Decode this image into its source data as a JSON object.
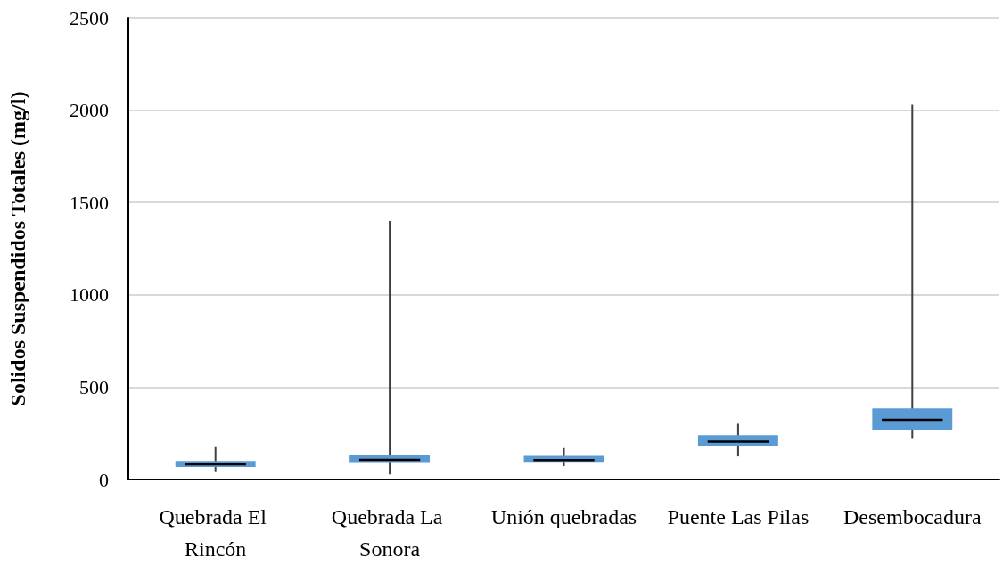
{
  "chart_data": {
    "type": "box",
    "ylabel": "Solidos Suspendidos Totales (mg/l)",
    "categories": [
      "Quebrada El Rincón",
      "Quebrada La Sonora",
      "Unión quebradas",
      "Puente Las Pilas",
      "Desembocadura"
    ],
    "color": "#5b9bd5",
    "boxes": [
      {
        "low": 40,
        "q1": 68,
        "median": 82,
        "q3": 100,
        "high": 175
      },
      {
        "low": 28,
        "q1": 94,
        "median": 106,
        "q3": 130,
        "high": 1400
      },
      {
        "low": 72,
        "q1": 95,
        "median": 105,
        "q3": 128,
        "high": 170
      },
      {
        "low": 125,
        "q1": 181,
        "median": 205,
        "q3": 240,
        "high": 302
      },
      {
        "low": 220,
        "q1": 267,
        "median": 323,
        "q3": 385,
        "high": 2030
      }
    ],
    "ylim": [
      0,
      2500
    ],
    "yticks": [
      0,
      500,
      1000,
      1500,
      2000,
      2500
    ],
    "grid": "y"
  }
}
